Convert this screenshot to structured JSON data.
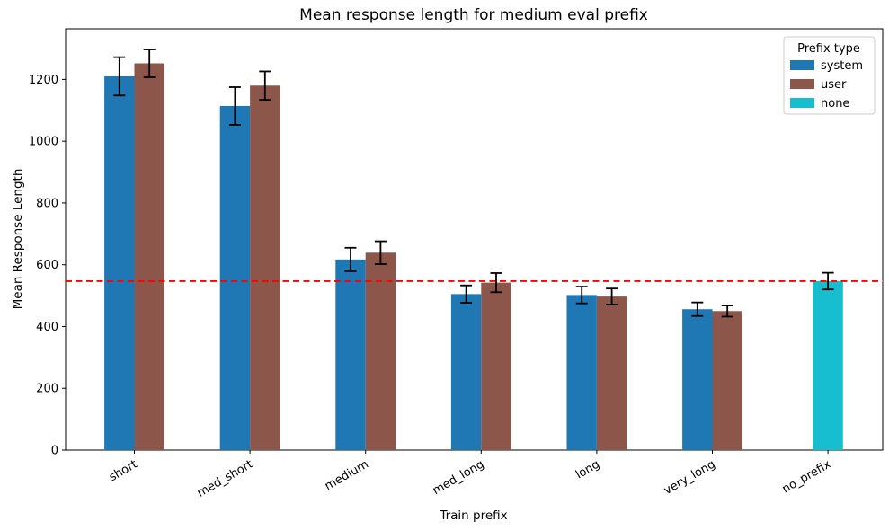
{
  "chart_data": {
    "type": "bar",
    "title": "Mean response length for medium eval prefix",
    "xlabel": "Train prefix",
    "ylabel": "Mean Response Length",
    "categories": [
      "short",
      "med_short",
      "medium",
      "med_long",
      "long",
      "very_long",
      "no_prefix"
    ],
    "series": [
      {
        "name": "system",
        "color": "#1f77b4",
        "values": [
          1210,
          1114,
          617,
          505,
          502,
          456,
          null
        ],
        "errors": [
          62,
          61,
          38,
          28,
          27,
          22,
          null
        ]
      },
      {
        "name": "user",
        "color": "#8c564b",
        "values": [
          1252,
          1180,
          639,
          542,
          497,
          450,
          null
        ],
        "errors": [
          45,
          46,
          37,
          31,
          26,
          18,
          null
        ]
      },
      {
        "name": "none",
        "color": "#17becf",
        "values": [
          null,
          null,
          null,
          null,
          null,
          null,
          547
        ],
        "errors": [
          null,
          null,
          null,
          null,
          null,
          null,
          27
        ]
      }
    ],
    "baseline": {
      "value": 547,
      "color": "#ff0000",
      "style": "dashed"
    },
    "ylim": [
      0,
      1364
    ],
    "yticks": [
      0,
      200,
      400,
      600,
      800,
      1000,
      1200
    ],
    "xtick_rotation": 30,
    "grid": false,
    "legend": {
      "title": "Prefix type",
      "position": "upper right"
    },
    "error_bar_color": "#000000",
    "axis_color": "#000000"
  }
}
